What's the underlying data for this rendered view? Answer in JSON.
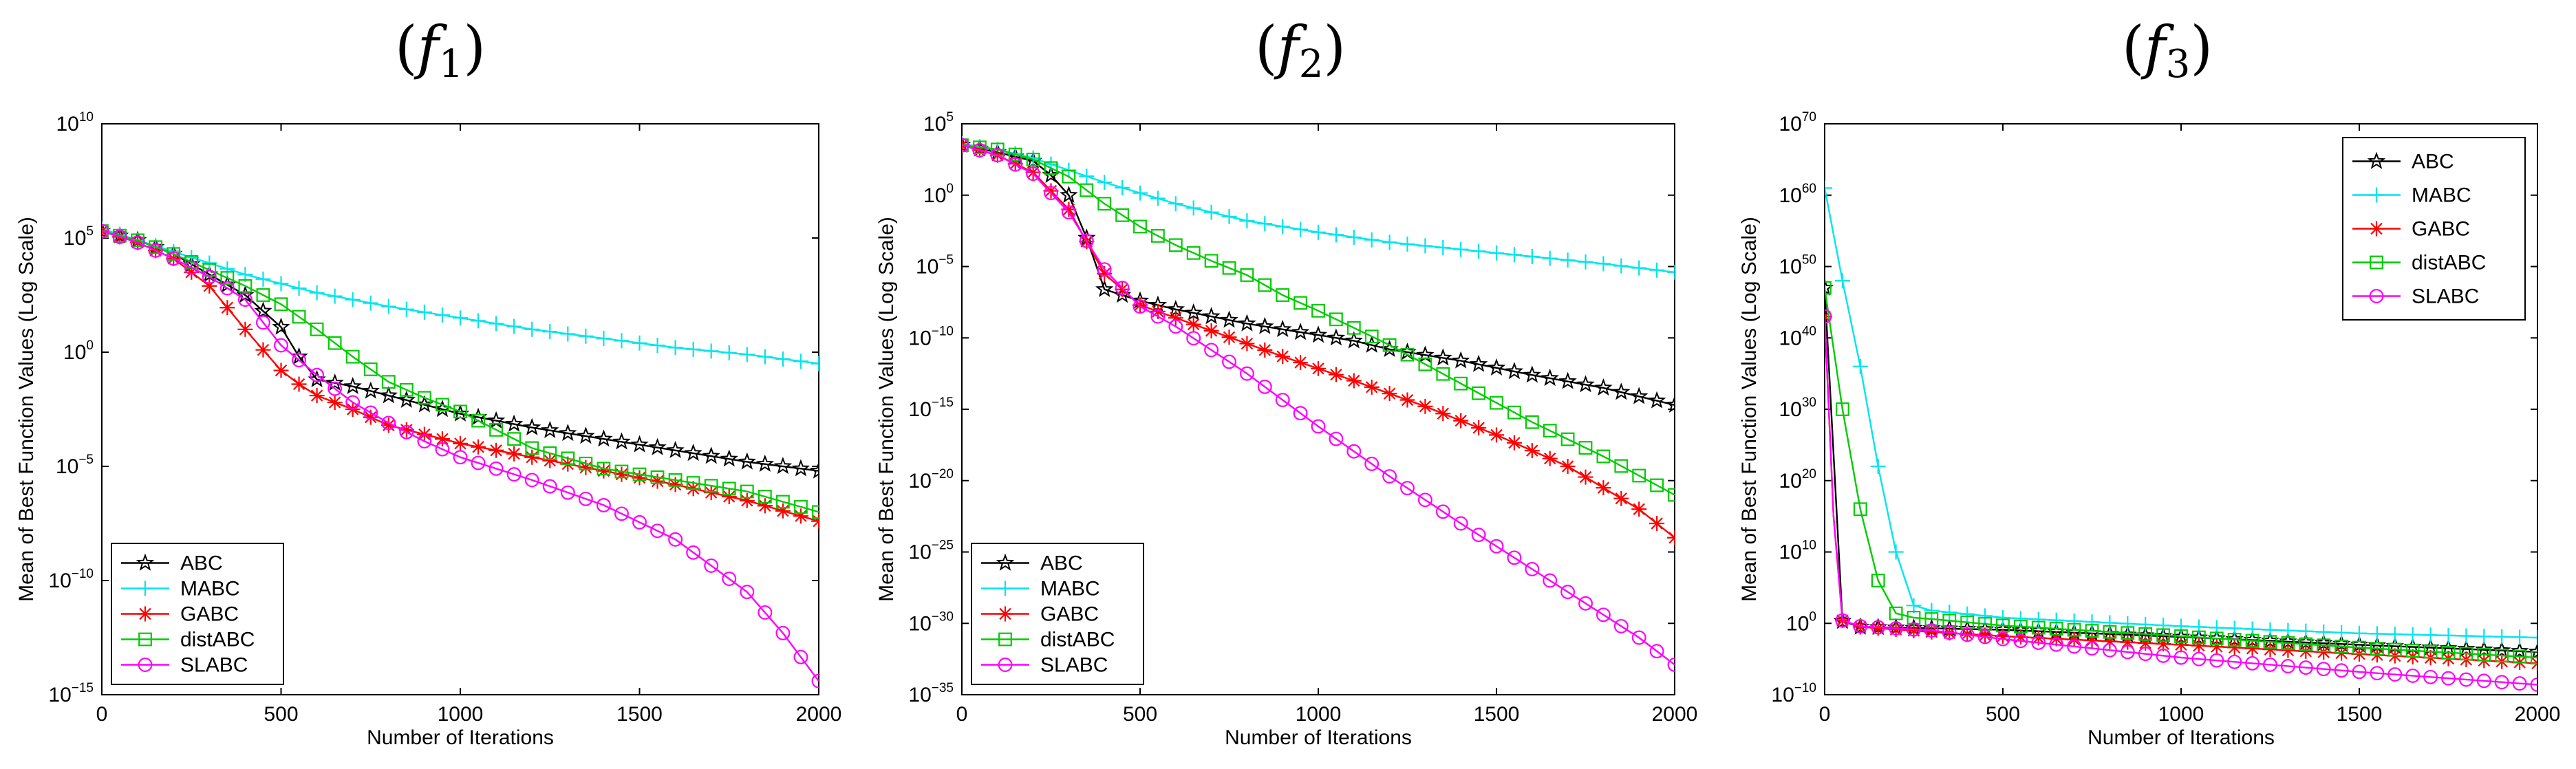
{
  "chart_data": [
    {
      "type": "line",
      "title": {
        "prefix": "(",
        "letter": "f",
        "sub": "1",
        "suffix": ")"
      },
      "xlabel": "Number of Iterations",
      "ylabel": "Mean of Best Function Values (Log Scale)",
      "xlim": [
        0,
        2000
      ],
      "ylim_log10": [
        -15,
        10
      ],
      "x_ticks": [
        "0",
        "500",
        "1000",
        "1500",
        "2000"
      ],
      "y_ticks": [
        {
          "base": "10",
          "exp": "10"
        },
        {
          "base": "10",
          "exp": "5"
        },
        {
          "base": "10",
          "exp": "0"
        },
        {
          "base": "10",
          "exp": "−5"
        },
        {
          "base": "10",
          "exp": "−10"
        },
        {
          "base": "10",
          "exp": "−15"
        }
      ],
      "legend_position": "bottom-left",
      "series": [
        {
          "name": "ABC",
          "color": "#000000",
          "marker": "star",
          "x": [
            0,
            100,
            200,
            300,
            400,
            500,
            550,
            600,
            700,
            800,
            900,
            1000,
            1200,
            1400,
            1600,
            1800,
            2000
          ],
          "log10_y": [
            5.3,
            4.9,
            4.3,
            3.4,
            2.5,
            1.1,
            -0.2,
            -1.2,
            -1.5,
            -1.9,
            -2.3,
            -2.7,
            -3.3,
            -3.8,
            -4.3,
            -4.8,
            -5.2
          ]
        },
        {
          "name": "MABC",
          "color": "#00e5ee",
          "marker": "plus",
          "x": [
            0,
            100,
            200,
            400,
            600,
            800,
            1000,
            1200,
            1400,
            1600,
            1800,
            2000
          ],
          "log10_y": [
            5.4,
            4.9,
            4.4,
            3.4,
            2.6,
            2.0,
            1.5,
            1.0,
            0.6,
            0.2,
            -0.1,
            -0.5
          ]
        },
        {
          "name": "GABC",
          "color": "#ff0000",
          "marker": "asterisk",
          "x": [
            0,
            100,
            200,
            300,
            400,
            500,
            550,
            600,
            700,
            800,
            1000,
            1200,
            1400,
            1600,
            1800,
            2000
          ],
          "log10_y": [
            5.3,
            4.8,
            4.1,
            2.9,
            1.0,
            -0.8,
            -1.4,
            -1.9,
            -2.5,
            -3.2,
            -4.0,
            -4.6,
            -5.2,
            -5.8,
            -6.5,
            -7.4
          ]
        },
        {
          "name": "distABC",
          "color": "#00cc00",
          "marker": "square",
          "x": [
            0,
            100,
            200,
            300,
            400,
            500,
            600,
            700,
            800,
            900,
            1000,
            1200,
            1400,
            1600,
            1800,
            2000
          ],
          "log10_y": [
            5.3,
            4.9,
            4.3,
            3.6,
            2.9,
            2.1,
            1.0,
            -0.2,
            -1.3,
            -2.0,
            -2.6,
            -4.2,
            -5.1,
            -5.6,
            -6.1,
            -7.0
          ]
        },
        {
          "name": "SLABC",
          "color": "#ff00ff",
          "marker": "circle",
          "x": [
            0,
            100,
            200,
            300,
            400,
            500,
            600,
            700,
            800,
            900,
            1000,
            1200,
            1400,
            1600,
            1800,
            1900,
            2000
          ],
          "log10_y": [
            5.3,
            4.8,
            4.1,
            3.3,
            2.3,
            0.3,
            -1.0,
            -2.2,
            -3.1,
            -3.9,
            -4.6,
            -5.6,
            -6.7,
            -8.2,
            -10.5,
            -12.3,
            -14.4
          ]
        }
      ]
    },
    {
      "type": "line",
      "title": {
        "prefix": "(",
        "letter": "f",
        "sub": "2",
        "suffix": ")"
      },
      "xlabel": "Number of Iterations",
      "ylabel": "Mean of Best Function Values (Log Scale)",
      "xlim": [
        0,
        2000
      ],
      "ylim_log10": [
        -35,
        5
      ],
      "x_ticks": [
        "0",
        "500",
        "1000",
        "1500",
        "2000"
      ],
      "y_ticks": [
        {
          "base": "10",
          "exp": "5"
        },
        {
          "base": "10",
          "exp": "0"
        },
        {
          "base": "10",
          "exp": "−5"
        },
        {
          "base": "10",
          "exp": "−10"
        },
        {
          "base": "10",
          "exp": "−15"
        },
        {
          "base": "10",
          "exp": "−20"
        },
        {
          "base": "10",
          "exp": "−25"
        },
        {
          "base": "10",
          "exp": "−30"
        },
        {
          "base": "10",
          "exp": "−35"
        }
      ],
      "legend_position": "bottom-left",
      "series": [
        {
          "name": "ABC",
          "color": "#000000",
          "marker": "star",
          "x": [
            0,
            100,
            200,
            250,
            300,
            350,
            400,
            500,
            600,
            700,
            800,
            900,
            1000,
            1100,
            1200,
            1400,
            1600,
            1800,
            2000
          ],
          "log10_y": [
            3.5,
            3.0,
            2.4,
            1.4,
            0,
            -3.0,
            -6.6,
            -7.4,
            -8.0,
            -8.5,
            -9.0,
            -9.4,
            -9.8,
            -10.2,
            -10.8,
            -11.6,
            -12.6,
            -13.5,
            -14.7
          ]
        },
        {
          "name": "MABC",
          "color": "#00e5ee",
          "marker": "plus",
          "x": [
            0,
            100,
            200,
            400,
            600,
            800,
            1000,
            1200,
            1400,
            1600,
            1800,
            2000
          ],
          "log10_y": [
            3.6,
            3.2,
            2.6,
            0.9,
            -0.6,
            -1.8,
            -2.6,
            -3.3,
            -3.8,
            -4.3,
            -4.8,
            -5.4
          ]
        },
        {
          "name": "GABC",
          "color": "#ff0000",
          "marker": "asterisk",
          "x": [
            0,
            100,
            200,
            300,
            400,
            500,
            700,
            900,
            1100,
            1300,
            1500,
            1700,
            1900,
            2000
          ],
          "log10_y": [
            3.5,
            2.8,
            1.6,
            -1.0,
            -5.5,
            -7.7,
            -9.5,
            -11.3,
            -13.0,
            -14.8,
            -16.8,
            -19.0,
            -22.0,
            -24.0
          ]
        },
        {
          "name": "distABC",
          "color": "#00cc00",
          "marker": "square",
          "x": [
            0,
            100,
            200,
            300,
            400,
            500,
            600,
            700,
            800,
            900,
            1000,
            1200,
            1400,
            1600,
            1800,
            2000
          ],
          "log10_y": [
            3.5,
            3.2,
            2.5,
            1.3,
            -0.6,
            -2.2,
            -3.5,
            -4.6,
            -5.6,
            -7.0,
            -8.1,
            -10.5,
            -13.2,
            -15.9,
            -18.3,
            -21.0
          ]
        },
        {
          "name": "SLABC",
          "color": "#ff00ff",
          "marker": "circle",
          "x": [
            0,
            100,
            200,
            300,
            400,
            500,
            600,
            800,
            1000,
            1200,
            1400,
            1600,
            1800,
            1900,
            2000
          ],
          "log10_y": [
            3.5,
            2.8,
            1.5,
            -1.2,
            -5.2,
            -7.8,
            -9.2,
            -12.5,
            -16.2,
            -19.7,
            -23.0,
            -26.2,
            -29.4,
            -31.0,
            -32.9
          ]
        }
      ]
    },
    {
      "type": "line",
      "title": {
        "prefix": "(",
        "letter": "f",
        "sub": "3",
        "suffix": ")"
      },
      "xlabel": "Number of Iterations",
      "ylabel": "Mean of Best Function Values (Log Scale)",
      "xlim": [
        0,
        2000
      ],
      "ylim_log10": [
        -10,
        70
      ],
      "x_ticks": [
        "0",
        "500",
        "1000",
        "1500",
        "2000"
      ],
      "y_ticks": [
        {
          "base": "10",
          "exp": "70"
        },
        {
          "base": "10",
          "exp": "60"
        },
        {
          "base": "10",
          "exp": "50"
        },
        {
          "base": "10",
          "exp": "40"
        },
        {
          "base": "10",
          "exp": "30"
        },
        {
          "base": "10",
          "exp": "20"
        },
        {
          "base": "10",
          "exp": "10"
        },
        {
          "base": "10",
          "exp": "0"
        },
        {
          "base": "10",
          "exp": "−10"
        }
      ],
      "legend_position": "top-right",
      "series": [
        {
          "name": "ABC",
          "color": "#000000",
          "marker": "star",
          "x": [
            0,
            50,
            100,
            300,
            500,
            1000,
            1500,
            2000
          ],
          "log10_y": [
            47,
            0.3,
            -0.5,
            -0.7,
            -0.9,
            -1.9,
            -3.0,
            -4.0
          ]
        },
        {
          "name": "MABC",
          "color": "#00e5ee",
          "marker": "plus",
          "x": [
            0,
            50,
            100,
            150,
            200,
            250,
            300,
            500,
            1000,
            1500,
            2000
          ],
          "log10_y": [
            61,
            48,
            36,
            22,
            10,
            2.5,
            1.8,
            0.8,
            -0.4,
            -1.4,
            -2.0
          ]
        },
        {
          "name": "GABC",
          "color": "#ff0000",
          "marker": "asterisk",
          "x": [
            0,
            25,
            50,
            100,
            300,
            500,
            1000,
            1500,
            2000
          ],
          "log10_y": [
            43,
            15,
            0.4,
            -0.5,
            -1.2,
            -1.8,
            -3.0,
            -4.3,
            -5.6
          ]
        },
        {
          "name": "distABC",
          "color": "#00cc00",
          "marker": "square",
          "x": [
            0,
            50,
            100,
            150,
            200,
            250,
            300,
            500,
            1000,
            1500,
            2000
          ],
          "log10_y": [
            47,
            30,
            16,
            6,
            1.4,
            0.8,
            0.6,
            -0.3,
            -1.8,
            -3.4,
            -4.8
          ]
        },
        {
          "name": "SLABC",
          "color": "#ff00ff",
          "marker": "circle",
          "x": [
            0,
            25,
            50,
            100,
            300,
            500,
            1000,
            1500,
            2000
          ],
          "log10_y": [
            43,
            15,
            0.4,
            -0.4,
            -1.0,
            -2.2,
            -4.8,
            -6.8,
            -8.6
          ]
        }
      ]
    }
  ]
}
